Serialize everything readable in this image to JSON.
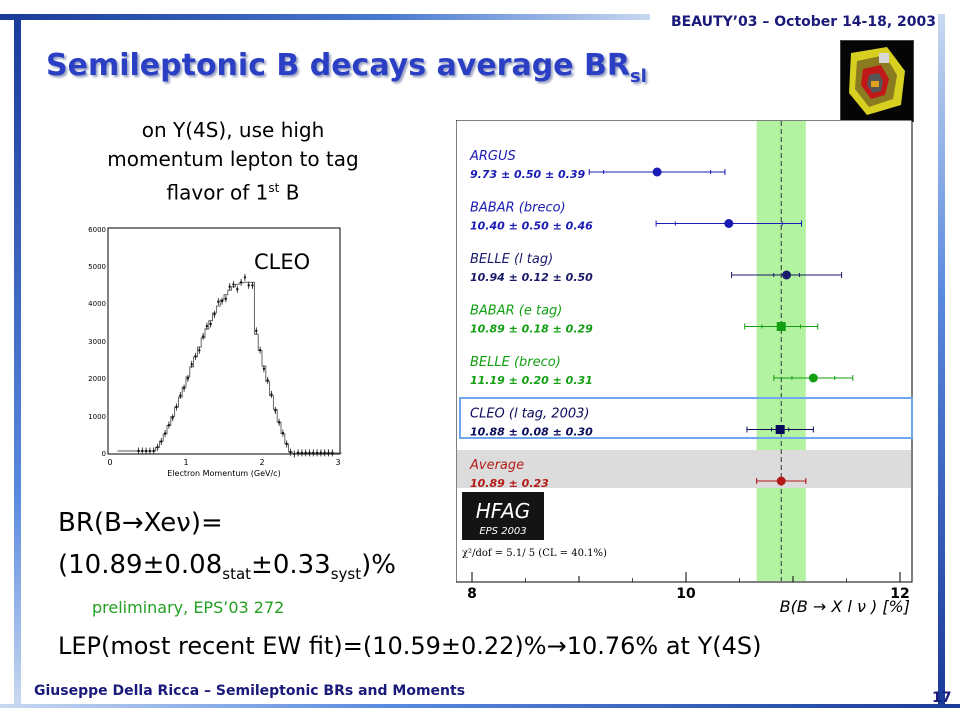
{
  "header": {
    "conference": "BEAUTY’03 – October 14-18, 2003",
    "title_main": "Semileptonic B decays average BR",
    "title_sub": "sl"
  },
  "intro": {
    "line1": "on Y(4S), use high",
    "line2": "momentum lepton to tag",
    "line3_pre": "flavor of 1",
    "line3_sup": "st",
    "line3_post": " B"
  },
  "spectrum": {
    "label": "CLEO",
    "xlabel": "Electron Momentum (GeV/c)",
    "x_ticks": [
      "0",
      "1",
      "2",
      "3"
    ],
    "y_ticks": [
      "0",
      "1000",
      "2000",
      "3000",
      "4000",
      "5000",
      "6000"
    ]
  },
  "result": {
    "line1": "BR(B→Xeν)=",
    "value_open": "(10.89±0.08",
    "stat_label": "stat",
    "value_mid": "±0.33",
    "syst_label": "syst",
    "value_close": ")%",
    "note": "preliminary, EPS’03 272"
  },
  "lep": "LEP(most recent EW fit)=(10.59±0.22)%→10.76% at Y(4S)",
  "footer": {
    "author": "Giuseppe Della Ricca – Semileptonic BRs and Moments",
    "page": "17"
  },
  "hfag": {
    "logo": "HFAG",
    "logo_sub": "EPS 2003",
    "chi2": "χ²/dof = 5.1/ 5 (CL = 40.1%)",
    "xlabel": "B(B → X l ν ) [%]"
  },
  "chart_data": {
    "type": "scatter",
    "xlim": [
      8,
      12
    ],
    "x_ticks": [
      "8",
      "10",
      "12"
    ],
    "xlabel": "B(B → X l ν ) [%]",
    "band": [
      10.66,
      11.12
    ],
    "central": 10.89,
    "measurements": [
      {
        "name": "ARGUS",
        "label": "9.73 ± 0.50 ± 0.39",
        "value": 9.73,
        "stat": 0.5,
        "syst": 0.39,
        "color": "#1a1ab4",
        "marker": "circle"
      },
      {
        "name": "BABAR (breco)",
        "label": "10.40 ± 0.50 ± 0.46",
        "value": 10.4,
        "stat": 0.5,
        "syst": 0.46,
        "color": "#1a1ab4",
        "marker": "circle"
      },
      {
        "name": "BELLE (l tag)",
        "label": "10.94 ± 0.12 ± 0.50",
        "value": 10.94,
        "stat": 0.12,
        "syst": 0.5,
        "color": "#1a1a6a",
        "marker": "circle"
      },
      {
        "name": "BABAR (e tag)",
        "label": "10.89 ± 0.18 ± 0.29",
        "value": 10.89,
        "stat": 0.18,
        "syst": 0.29,
        "color": "#12a012",
        "marker": "square"
      },
      {
        "name": "BELLE (breco)",
        "label": "11.19 ± 0.20 ± 0.31",
        "value": 11.19,
        "stat": 0.2,
        "syst": 0.31,
        "color": "#12a012",
        "marker": "circle"
      },
      {
        "name": "CLEO (l tag, 2003)",
        "label": "10.88 ± 0.08 ± 0.30",
        "value": 10.88,
        "stat": 0.08,
        "syst": 0.3,
        "color": "#0a0a5a",
        "marker": "square"
      },
      {
        "name": "Average",
        "label": "10.89 ± 0.23",
        "value": 10.89,
        "stat": 0.23,
        "syst": 0,
        "color": "#b41a1a",
        "marker": "circle"
      }
    ]
  }
}
